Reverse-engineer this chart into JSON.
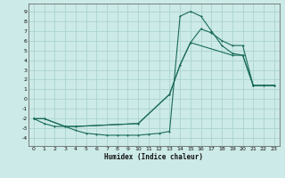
{
  "xlabel": "Humidex (Indice chaleur)",
  "background_color": "#cceae7",
  "grid_color": "#aad4d0",
  "line_color": "#1a6b5a",
  "xlim": [
    -0.5,
    23.5
  ],
  "ylim": [
    -4.8,
    9.8
  ],
  "xticks": [
    0,
    1,
    2,
    3,
    4,
    5,
    6,
    7,
    8,
    9,
    10,
    11,
    12,
    13,
    14,
    15,
    16,
    17,
    18,
    19,
    20,
    21,
    22,
    23
  ],
  "yticks": [
    -4,
    -3,
    -2,
    -1,
    0,
    1,
    2,
    3,
    4,
    5,
    6,
    7,
    8,
    9
  ],
  "curve1_x": [
    0,
    1,
    2,
    3,
    4,
    5,
    6,
    7,
    8,
    9,
    10,
    11,
    12,
    13,
    14,
    15,
    16,
    17,
    18,
    19,
    20,
    21,
    22,
    23
  ],
  "curve1_y": [
    -2.0,
    -2.5,
    -2.8,
    -2.8,
    -3.2,
    -3.5,
    -3.6,
    -3.7,
    -3.7,
    -3.7,
    -3.7,
    -3.6,
    -3.5,
    -3.3,
    8.5,
    9.0,
    8.5,
    7.0,
    5.5,
    4.7,
    4.5,
    1.4,
    1.4,
    1.4
  ],
  "curve2_x": [
    0,
    1,
    3,
    4,
    10,
    13,
    14,
    15,
    16,
    17,
    18,
    19,
    20,
    21,
    22,
    23
  ],
  "curve2_y": [
    -2.0,
    -2.0,
    -2.8,
    -2.8,
    -2.5,
    0.5,
    3.5,
    5.8,
    7.2,
    6.8,
    6.0,
    5.5,
    5.5,
    1.4,
    1.4,
    1.4
  ],
  "curve3_x": [
    0,
    1,
    3,
    4,
    10,
    13,
    14,
    15,
    19,
    20,
    21,
    23
  ],
  "curve3_y": [
    -2.0,
    -2.0,
    -2.8,
    -2.8,
    -2.5,
    0.5,
    3.5,
    5.8,
    4.5,
    4.5,
    1.4,
    1.4
  ]
}
